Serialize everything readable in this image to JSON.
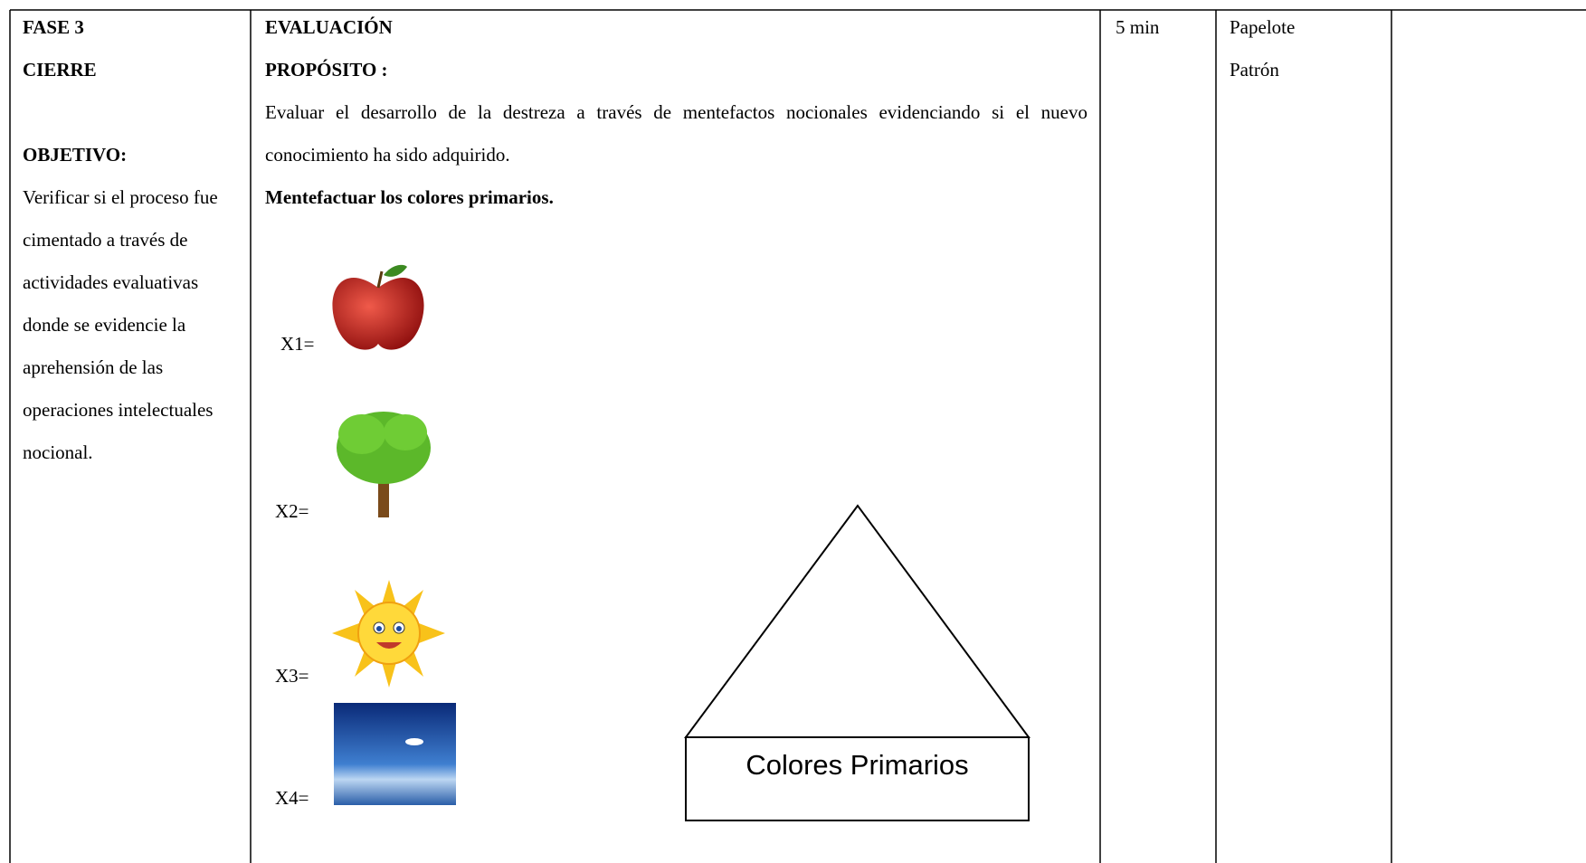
{
  "table": {
    "rows": [
      {
        "cells": [
          {
            "heading": "FASE 3",
            "subheading": "CIERRE",
            "label": "OBJETIVO:",
            "text": "Verificar si el proceso fue cimentado a través de actividades evaluativas donde se evidencie la aprehensión de las operaciones intelectuales nocional."
          },
          {
            "heading": "EVALUACIÓN",
            "label": "PROPÓSITO :",
            "text": "Evaluar el desarrollo de la destreza a través de mentefactos nocionales evidenciando si el nuevo conocimiento ha sido adquirido.",
            "task": "Mentefactuar los colores primarios.",
            "items": [
              "X1=",
              "X2=",
              "X3=",
              "X4="
            ],
            "diagram": "Colores Primarios"
          },
          {
            "text": "5 min"
          },
          {
            "lines": [
              "Papelote",
              "Patrón"
            ]
          }
        ]
      }
    ]
  }
}
